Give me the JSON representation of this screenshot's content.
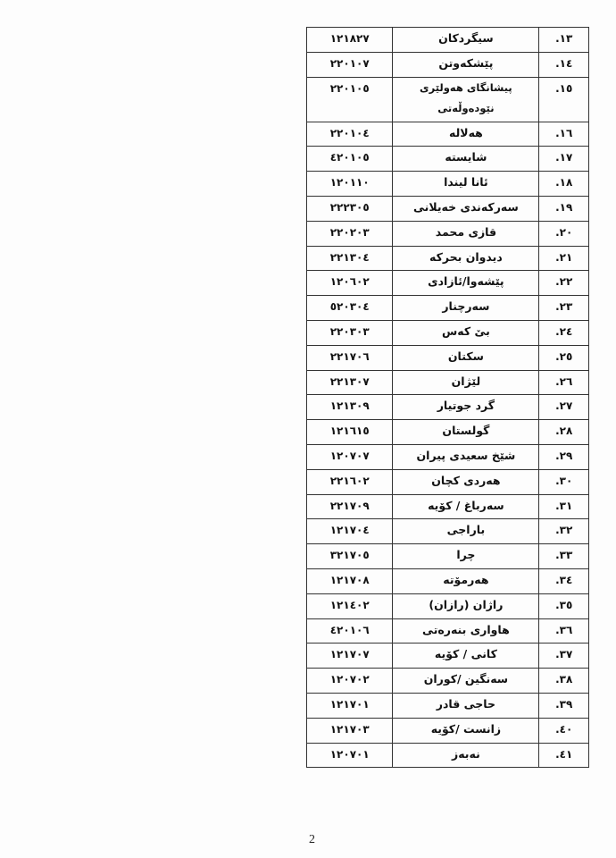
{
  "table": {
    "rows": [
      {
        "num": "١٣.",
        "name": "سیگردکان",
        "code": "١٢١٨٢٧"
      },
      {
        "num": "١٤.",
        "name": "پێشکەوتن",
        "code": "٢٢٠١٠٧"
      },
      {
        "num": "١٥.",
        "name": "پیشانگای هەولێری نێودەوڵەتی",
        "code": "٢٢٠١٠٥"
      },
      {
        "num": "١٦.",
        "name": "هەلالە",
        "code": "٢٢٠١٠٤"
      },
      {
        "num": "١٧.",
        "name": "شایستە",
        "code": "٤٢٠١٠٥"
      },
      {
        "num": "١٨.",
        "name": "ئانا لیندا",
        "code": "١٢٠١١٠"
      },
      {
        "num": "١٩.",
        "name": "سەرکەندی خەیلانی",
        "code": "٢٢٢٣٠٥"
      },
      {
        "num": "٢٠.",
        "name": "قازی محمد",
        "code": "٢٢٠٢٠٣"
      },
      {
        "num": "٢١.",
        "name": "دیدوان بحرکە",
        "code": "٢٢١٣٠٤"
      },
      {
        "num": "٢٢.",
        "name": "پێشەوا/ئازادی",
        "code": "١٢٠٦٠٢"
      },
      {
        "num": "٢٣.",
        "name": "سەرچنار",
        "code": "٥٢٠٣٠٤"
      },
      {
        "num": "٢٤.",
        "name": "بێ کەس",
        "code": "٢٢٠٣٠٣"
      },
      {
        "num": "٢٥.",
        "name": "سکتان",
        "code": "٢٢١٧٠٦"
      },
      {
        "num": "٢٦.",
        "name": "لێژان",
        "code": "٢٢١٣٠٧"
      },
      {
        "num": "٢٧.",
        "name": "گرد جوتیار",
        "code": "١٢١٣٠٩"
      },
      {
        "num": "٢٨.",
        "name": "گولستان",
        "code": "١٢١٦١٥"
      },
      {
        "num": "٢٩.",
        "name": "شێخ سعیدی پیران",
        "code": "١٢٠٧٠٧"
      },
      {
        "num": "٣٠.",
        "name": "هەردی کچان",
        "code": "٢٢١٦٠٢"
      },
      {
        "num": "٣١.",
        "name": "سەرباغ / کۆیە",
        "code": "٢٢١٧٠٩"
      },
      {
        "num": "٣٢.",
        "name": "باراجی",
        "code": "١٢١٧٠٤"
      },
      {
        "num": "٣٣.",
        "name": "چرا",
        "code": "٣٢١٧٠٥"
      },
      {
        "num": "٣٤.",
        "name": "هەرمۆتە",
        "code": "١٢١٧٠٨"
      },
      {
        "num": "٣٥.",
        "name": "راژان (رازان)",
        "code": "١٢١٤٠٢"
      },
      {
        "num": "٣٦.",
        "name": "هاواری بنەرەتی",
        "code": "٤٢٠١٠٦"
      },
      {
        "num": "٣٧.",
        "name": "کانی / کۆیە",
        "code": "١٢١٧٠٧"
      },
      {
        "num": "٣٨.",
        "name": "سەنگین /کوران",
        "code": "١٢٠٧٠٢"
      },
      {
        "num": "٣٩.",
        "name": "حاجی قادر",
        "code": "١٢١٧٠١"
      },
      {
        "num": "٤٠.",
        "name": "زانست /کۆیە",
        "code": "١٢١٧٠٣"
      },
      {
        "num": "٤١.",
        "name": "نەبەز",
        "code": "١٢٠٧٠١"
      }
    ]
  },
  "page_number": "2"
}
